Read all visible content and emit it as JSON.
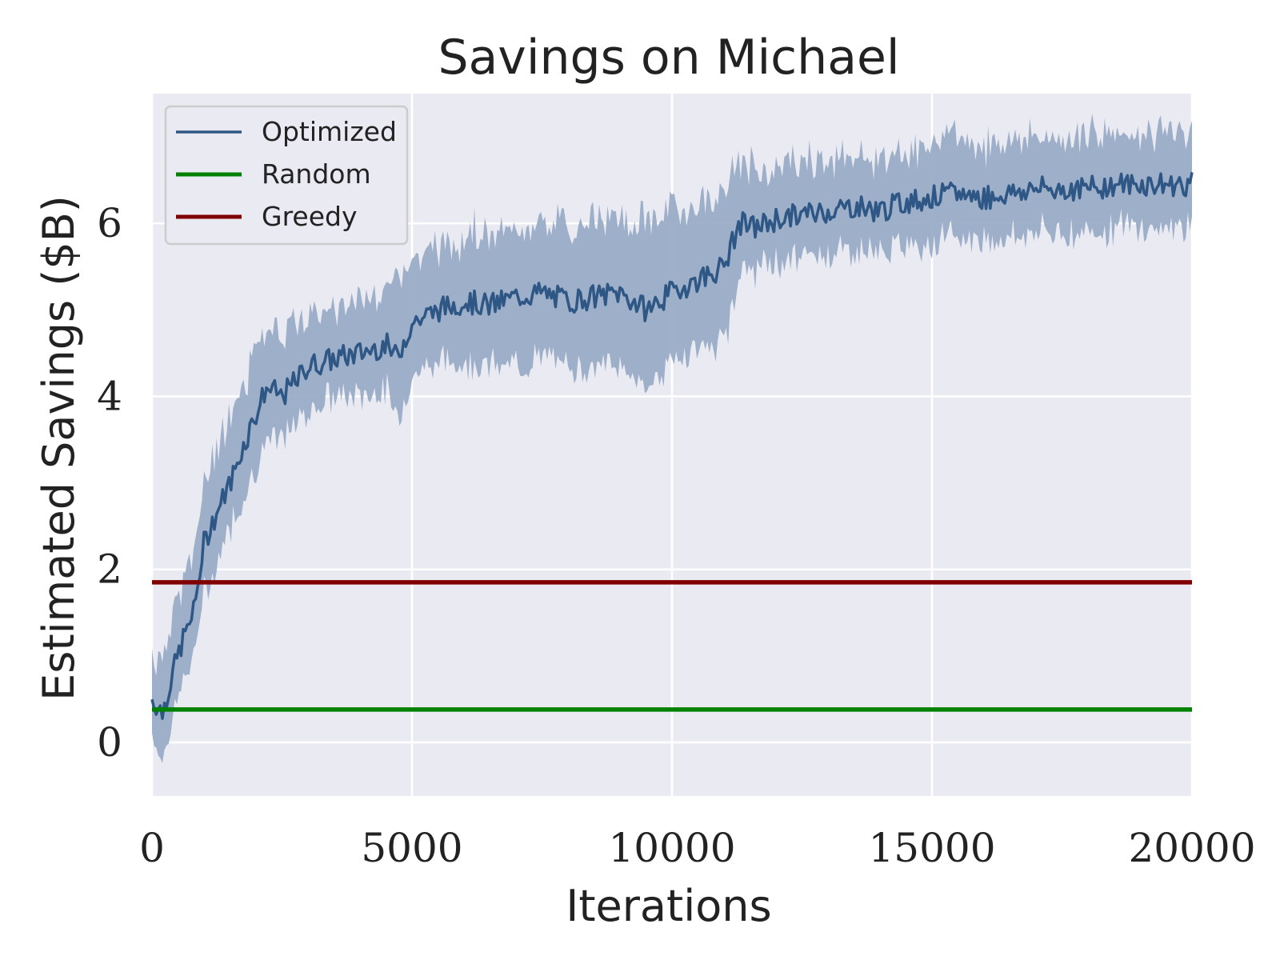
{
  "chart_data": {
    "type": "line",
    "title": "Savings on Michael",
    "xlabel": "Iterations",
    "ylabel": "Estimated Savings ($B)",
    "xlim": [
      0,
      20000
    ],
    "ylim": [
      -0.62,
      7.5
    ],
    "xticks": [
      0,
      5000,
      10000,
      15000,
      20000
    ],
    "yticks": [
      0,
      2,
      4,
      6
    ],
    "xtick_labels": [
      "0",
      "5000",
      "10000",
      "15000",
      "20000"
    ],
    "ytick_labels": [
      "0",
      "2",
      "4",
      "6"
    ],
    "grid": true,
    "legend_position": "top-left",
    "series": [
      {
        "name": "Optimized",
        "color": "#2f5785",
        "band_color": "#9aadc6",
        "x": [
          0,
          200,
          400,
          600,
          800,
          1000,
          1200,
          1500,
          1800,
          2000,
          2200,
          2500,
          2800,
          3000,
          3300,
          3600,
          4000,
          4500,
          4700,
          5000,
          5500,
          6000,
          6500,
          7000,
          7500,
          8000,
          8500,
          9000,
          9500,
          10000,
          10500,
          11000,
          11300,
          11600,
          12000,
          12500,
          13000,
          13500,
          14000,
          14500,
          15000,
          15500,
          16000,
          16500,
          17000,
          17500,
          18000,
          18500,
          19000,
          19500,
          20000
        ],
        "y": [
          0.5,
          0.35,
          0.8,
          1.2,
          1.5,
          2.3,
          2.6,
          3.0,
          3.5,
          3.8,
          4.1,
          4.0,
          4.2,
          4.35,
          4.4,
          4.45,
          4.5,
          4.6,
          4.45,
          4.85,
          5.0,
          5.1,
          5.05,
          5.15,
          5.2,
          5.1,
          5.15,
          5.2,
          5.0,
          5.2,
          5.35,
          5.5,
          6.0,
          5.95,
          6.05,
          6.1,
          6.15,
          6.2,
          6.15,
          6.25,
          6.3,
          6.35,
          6.3,
          6.35,
          6.4,
          6.4,
          6.4,
          6.45,
          6.45,
          6.45,
          6.45
        ],
        "lower": [
          0.1,
          -0.2,
          0.3,
          0.7,
          1.0,
          1.7,
          2.0,
          2.5,
          2.9,
          3.2,
          3.45,
          3.5,
          3.7,
          3.85,
          3.95,
          4.0,
          4.0,
          4.1,
          3.7,
          4.25,
          4.4,
          4.4,
          4.35,
          4.35,
          4.45,
          4.35,
          4.35,
          4.35,
          4.1,
          4.4,
          4.55,
          4.6,
          5.45,
          5.45,
          5.55,
          5.6,
          5.65,
          5.7,
          5.65,
          5.75,
          5.8,
          5.85,
          5.8,
          5.85,
          5.9,
          5.9,
          5.9,
          5.95,
          5.95,
          5.95,
          6.0
        ],
        "upper": [
          0.95,
          0.9,
          1.35,
          1.75,
          2.05,
          2.95,
          3.2,
          3.6,
          4.1,
          4.5,
          4.75,
          4.6,
          4.75,
          4.85,
          4.9,
          4.95,
          5.0,
          5.15,
          5.25,
          5.45,
          5.65,
          5.75,
          5.75,
          5.8,
          5.9,
          5.85,
          5.9,
          5.95,
          5.9,
          6.05,
          6.1,
          6.3,
          6.55,
          6.5,
          6.55,
          6.6,
          6.65,
          6.7,
          6.65,
          6.75,
          6.8,
          6.85,
          6.8,
          6.85,
          6.9,
          6.9,
          6.9,
          6.95,
          6.95,
          6.95,
          6.95
        ]
      },
      {
        "name": "Random",
        "color": "#008000",
        "x": [
          0,
          20000
        ],
        "y": [
          0.38,
          0.38
        ]
      },
      {
        "name": "Greedy",
        "color": "#800000",
        "x": [
          0,
          20000
        ],
        "y": [
          1.85,
          1.85
        ]
      }
    ]
  },
  "colors": {
    "plot_background": "#eaeaf2",
    "grid": "#ffffff",
    "legend_border": "#cccccc",
    "legend_background": "#eaeaf2"
  }
}
